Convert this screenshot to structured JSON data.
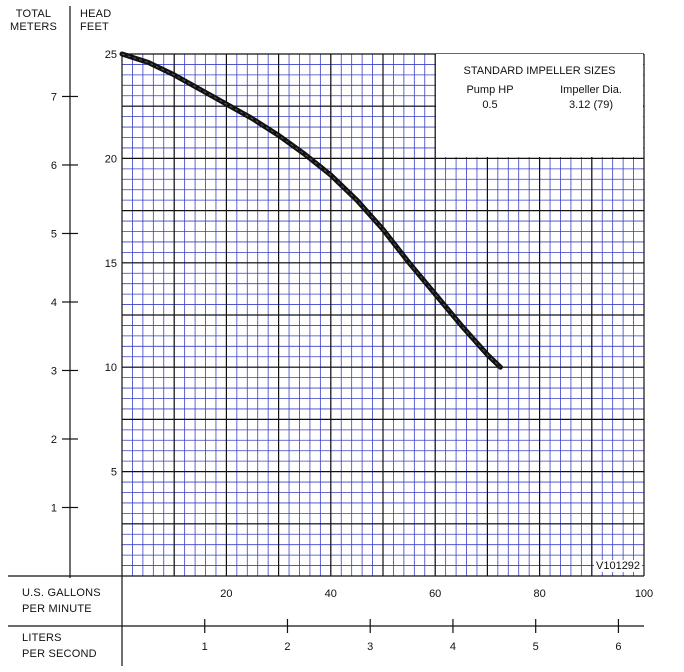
{
  "header": {
    "left_axis_title": [
      "TOTAL",
      "METERS"
    ],
    "right_axis_title": [
      "HEAD",
      "FEET"
    ]
  },
  "footer": {
    "gpm_label": [
      "U.S. GALLONS",
      "PER MINUTE"
    ],
    "lps_label": [
      "LITERS",
      "PER SECOND"
    ]
  },
  "legend_box": {
    "title": "STANDARD IMPELLER SIZES",
    "col1_header": "Pump HP",
    "col2_header": "Impeller Dia.",
    "col1_value": "0.5",
    "col2_value": "3.12 (79)"
  },
  "drawing_id": "V101292",
  "colors": {
    "minor_grid": "#3a3fc4",
    "major_grid": "#111111",
    "curve": "#111111",
    "background": "#ffffff"
  },
  "chart_data": {
    "type": "line",
    "x_axis": {
      "unit_label": "U.S. GALLONS PER MINUTE",
      "range": [
        0,
        100
      ],
      "tick_values": [
        20,
        40,
        60,
        80,
        100
      ]
    },
    "y_axis": {
      "unit_label": "HEAD FEET",
      "range": [
        0,
        25
      ],
      "tick_values": [
        5,
        10,
        15,
        20,
        25
      ]
    },
    "meters_axis": {
      "tick_values": [
        1,
        2,
        3,
        4,
        5,
        6,
        7
      ]
    },
    "lps_axis": {
      "tick_values": [
        1,
        2,
        3,
        4,
        5,
        6
      ]
    },
    "grid": true,
    "series": [
      {
        "x": [
          0,
          5,
          10,
          15,
          20,
          25,
          30,
          35,
          40,
          45,
          50,
          55,
          60,
          65,
          70,
          72.5
        ],
        "y": [
          25,
          24.6,
          24.0,
          23.3,
          22.6,
          21.9,
          21.1,
          20.2,
          19.2,
          18.0,
          16.6,
          15.0,
          13.5,
          12.0,
          10.6,
          10.0
        ]
      }
    ]
  }
}
